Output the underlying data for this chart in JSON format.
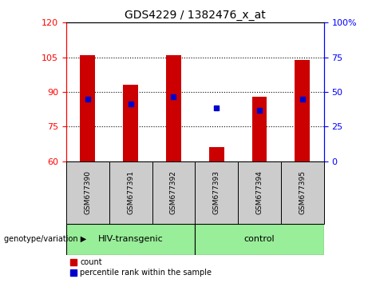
{
  "title": "GDS4229 / 1382476_x_at",
  "categories": [
    "GSM677390",
    "GSM677391",
    "GSM677392",
    "GSM677393",
    "GSM677394",
    "GSM677395"
  ],
  "bar_values": [
    106,
    93,
    106,
    66,
    88,
    104
  ],
  "bar_bottom": 60,
  "blue_dot_values": [
    87,
    85,
    88,
    83,
    82,
    87
  ],
  "ylim_left": [
    60,
    120
  ],
  "ylim_right": [
    0,
    100
  ],
  "yticks_left": [
    60,
    75,
    90,
    105,
    120
  ],
  "yticks_right": [
    0,
    25,
    50,
    75,
    100
  ],
  "ytick_labels_right": [
    "0",
    "25",
    "50",
    "75",
    "100%"
  ],
  "bar_color": "#cc0000",
  "dot_color": "#0000cc",
  "group1_label": "HIV-transgenic",
  "group2_label": "control",
  "group1_indices": [
    0,
    1,
    2
  ],
  "group2_indices": [
    3,
    4,
    5
  ],
  "group_bg_color": "#99ee99",
  "xlabel_label": "genotype/variation",
  "legend_count_label": "count",
  "legend_pct_label": "percentile rank within the sample",
  "tick_label_bg": "#cccccc",
  "figsize": [
    4.61,
    3.54
  ],
  "dpi": 100
}
